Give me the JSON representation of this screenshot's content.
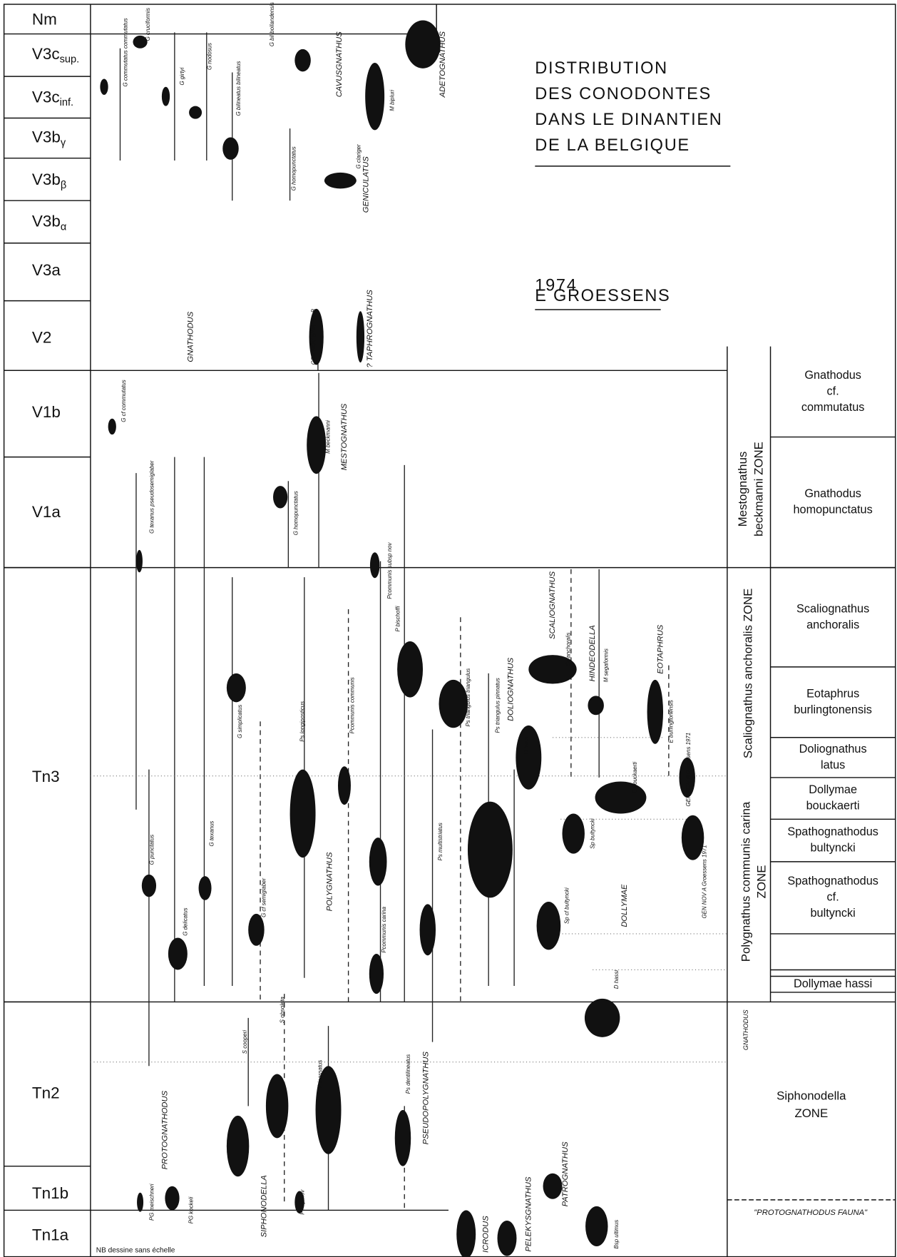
{
  "title_lines": [
    "DISTRIBUTION",
    "DES CONODONTES",
    "DANS LE DINANTIEN",
    "DE LA BELGIQUE"
  ],
  "year": "1974",
  "author": "E GROESSENS",
  "note": "NB dessine sans échelle",
  "stages": [
    {
      "main": "Nm"
    },
    {
      "main": "V3c",
      "sub": "sup."
    },
    {
      "main": "V3c",
      "sub": "inf."
    },
    {
      "main": "V3b",
      "sub": "γ"
    },
    {
      "main": "V3b",
      "sub": "β"
    },
    {
      "main": "V3b",
      "sub": "α"
    },
    {
      "main": "V3a"
    },
    {
      "main": "V2"
    },
    {
      "main": "V1b"
    },
    {
      "main": "V1a"
    },
    {
      "main": "Tn3"
    },
    {
      "main": "Tn2"
    },
    {
      "main": "Tn1b"
    },
    {
      "main": "Tn1a"
    }
  ],
  "genera": [
    "GNATHODUS",
    "CAVUSGNATHUS",
    "ADETOGNATHUS",
    "GENICULATUS",
    "? TAPHROGNATHUS",
    "MESTOGNATHUS",
    "POLYGNATHUS",
    "SCALIOGNATHUS",
    "DOLIOGNATHUS",
    "HINDEODELLA",
    "EOTAPHRUS",
    "DOLLYMAE",
    "PROTOGNATHODUS",
    "SIPHONODELLA",
    "PSEUDOPOLYGNATHUS",
    "PELEKYSGNATHUS",
    "PATROGNATHUS",
    "ICRODUS"
  ],
  "species": [
    "G commutatus commutatus",
    "G cruciformis",
    "G girtyi",
    "G nodosus",
    "G bilineatus bilineatus",
    "G bil bollandensis",
    "G homopunctatus",
    "M bipluri",
    "G clariger",
    "G cf commutatus",
    "G texanus pseudosemiglaber",
    "G homopunctatus",
    "M beckmanni",
    "GEN NOV aff M ?sp B",
    "Pcommunis subsp nov",
    "P bischoffi",
    "Pcommunis communis",
    "Ps longiposticus",
    "G simplicatus",
    "G punctatus",
    "G texanus",
    "G cf semiglaber",
    "G delicatus",
    "Pcommunis carina",
    "Ps multistriatus",
    "Ps triangulus triangulus",
    "Ps triangulus pinnatus",
    "Sc anchoralis",
    "D latus",
    "M segaformis",
    "E burlingtonensis",
    "D bouckaerti",
    "Sp bultyncki",
    "Sp cf bultyncki",
    "GEN NOV B Groessens 1971",
    "GEN NOV A Groessens 1971",
    "D hassi",
    "S cooperi",
    "S obsoleta",
    "P inornatus",
    "Ps dentilineatus",
    "PG meischneri",
    "PG kockeli",
    "P? sp nov",
    "Bsp ultimus"
  ],
  "zones": [
    {
      "lines": [
        "Mestognathus",
        "beckmanni ZONE"
      ]
    },
    {
      "lines": [
        "Scaliognathus anchoralis ZONE"
      ]
    },
    {
      "lines": [
        "Polygnathus communis carina",
        "ZONE"
      ]
    },
    {
      "lines": [
        "GNATHODUS"
      ]
    },
    {
      "lines": [
        "Siphonodella",
        "ZONE"
      ]
    },
    {
      "lines": [
        "\"PROTOGNATHODUS FAUNA\""
      ]
    }
  ],
  "subzones": [
    [
      "Gnathodus",
      "cf.",
      "commutatus"
    ],
    [
      "Gnathodus",
      "homopunctatus"
    ],
    [
      "Scaliognathus",
      "anchoralis"
    ],
    [
      "Eotaphrus",
      "burlingtonensis"
    ],
    [
      "Doliognathus",
      "latus"
    ],
    [
      "Dollymae",
      "bouckaerti"
    ],
    [
      "Spathognathodus",
      "bultyncki"
    ],
    [
      "Spathognathodus",
      "cf.",
      "bultyncki"
    ],
    [],
    [
      "Dollymae hassi"
    ]
  ]
}
